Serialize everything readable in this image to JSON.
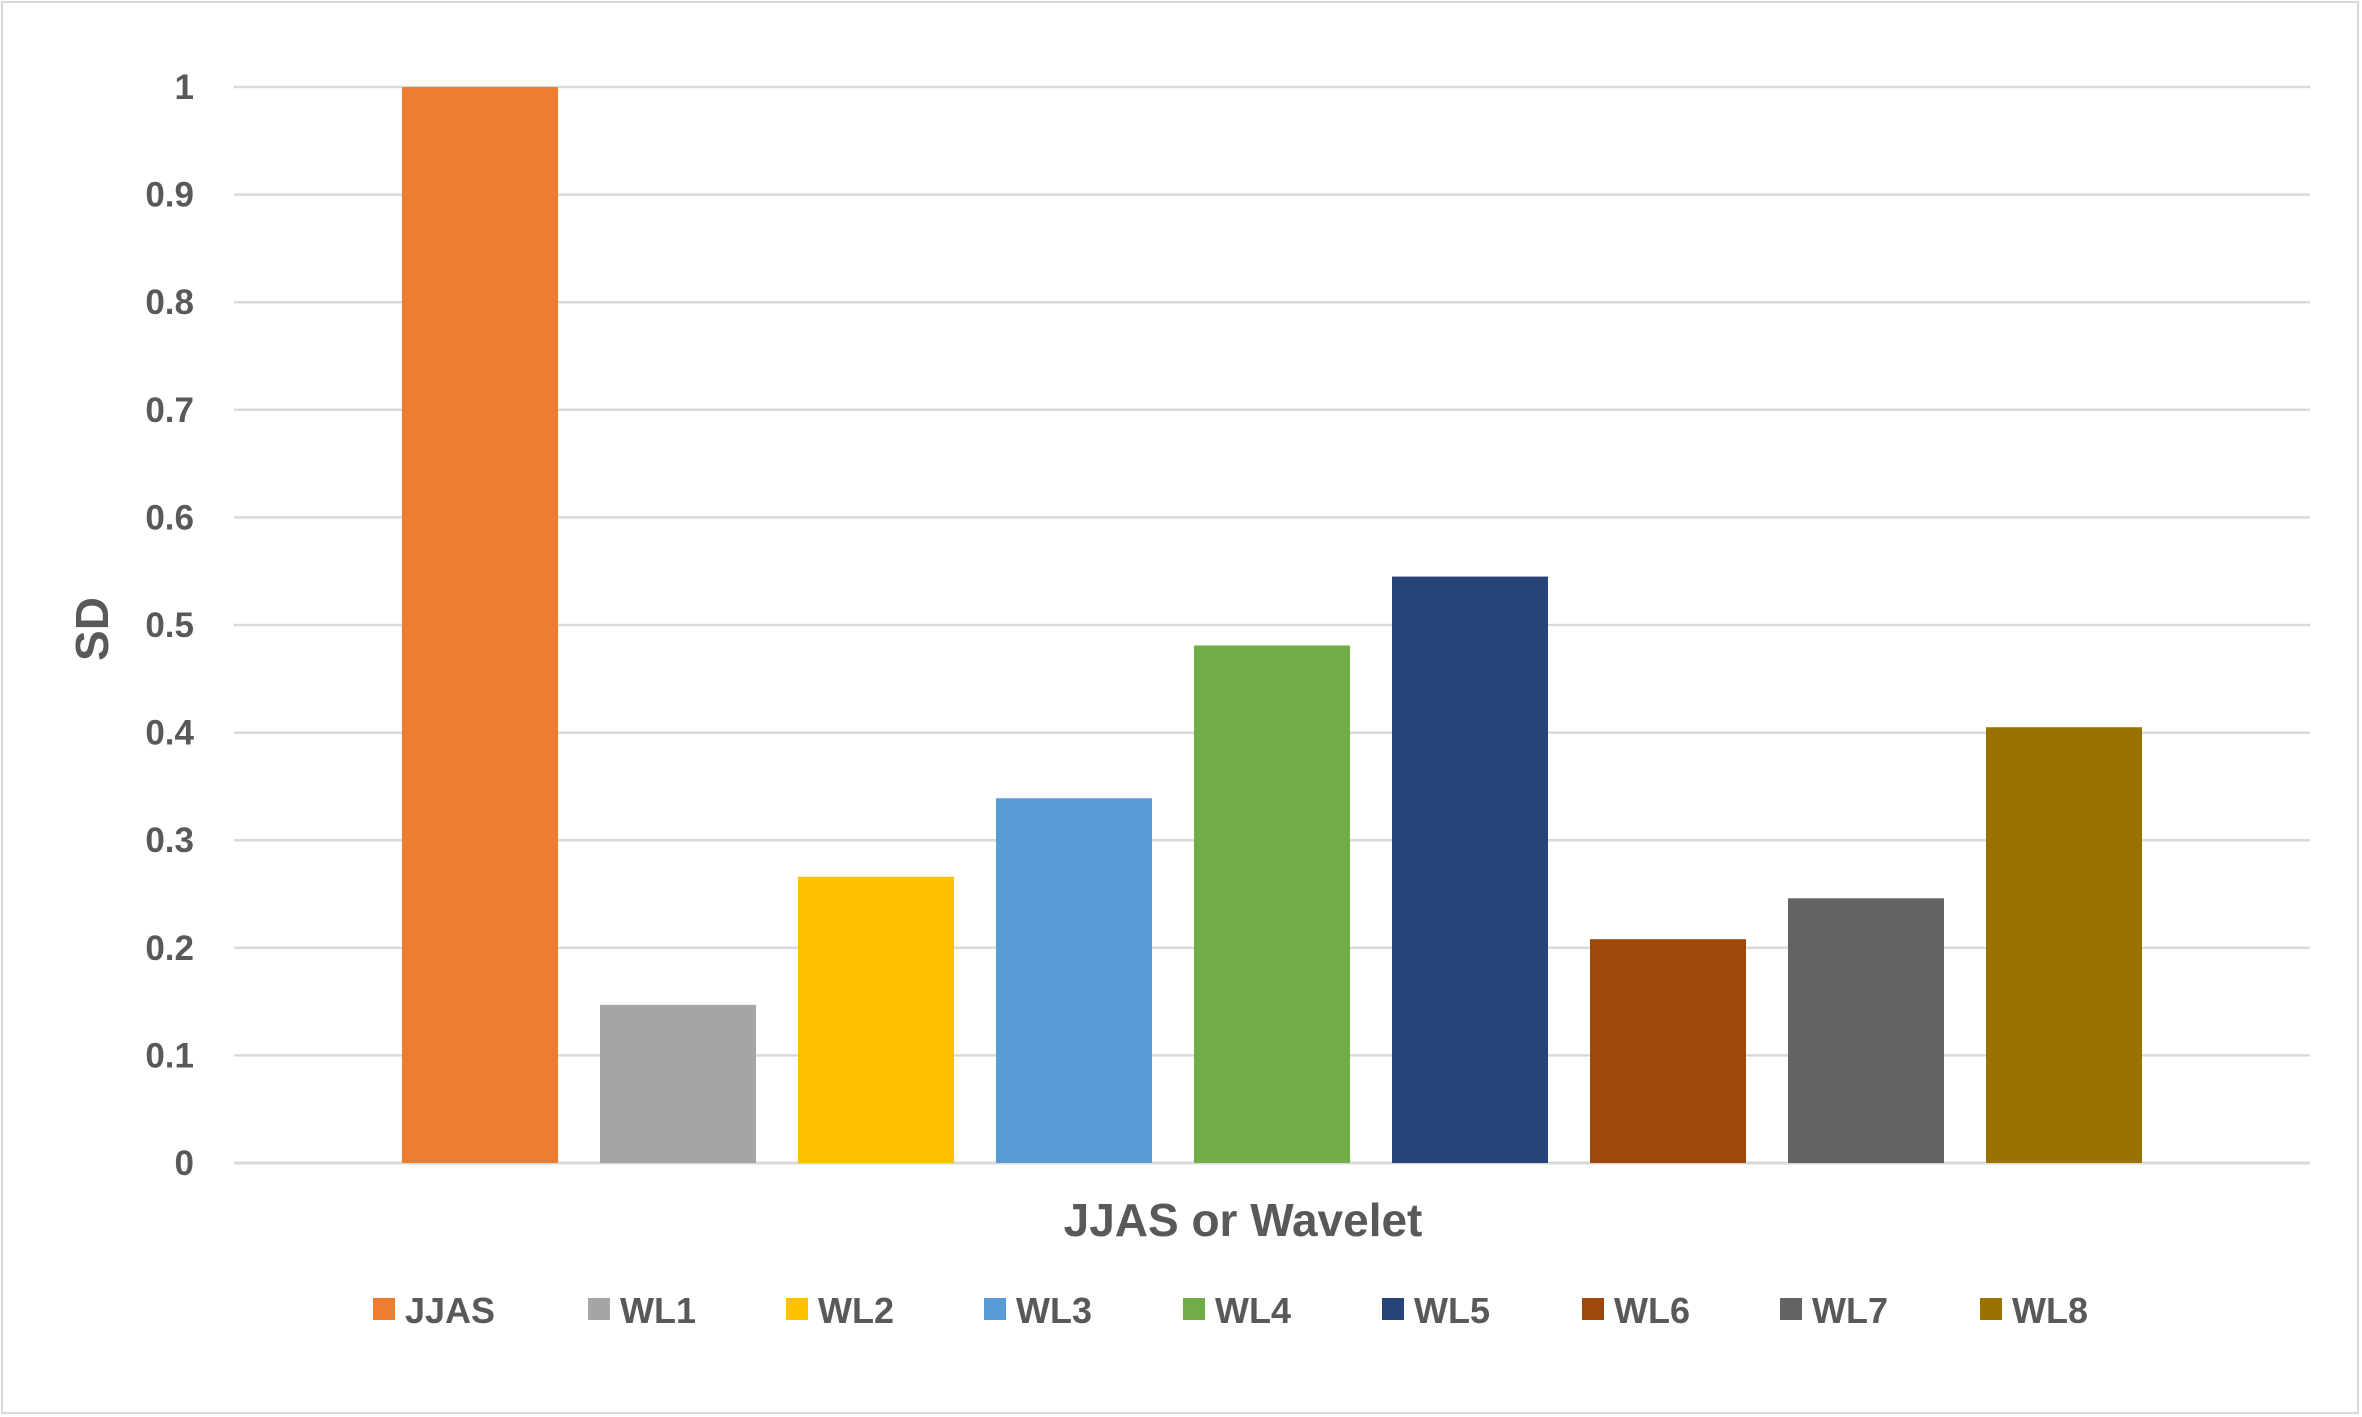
{
  "chart_data": {
    "type": "bar",
    "title": "",
    "xlabel": "JJAS or Wavelet",
    "ylabel": "SD",
    "ylim": [
      0,
      1
    ],
    "yticks": [
      "0",
      "0.1",
      "0.2",
      "0.3",
      "0.4",
      "0.5",
      "0.6",
      "0.7",
      "0.8",
      "0.9",
      "1"
    ],
    "grid": true,
    "legend_position": "bottom",
    "series": [
      {
        "name": "JJAS",
        "value": 1.0,
        "color": "#ED7D31"
      },
      {
        "name": "WL1",
        "value": 0.147,
        "color": "#A5A5A5"
      },
      {
        "name": "WL2",
        "value": 0.266,
        "color": "#FFC000"
      },
      {
        "name": "WL3",
        "value": 0.339,
        "color": "#5B9BD5"
      },
      {
        "name": "WL4",
        "value": 0.481,
        "color": "#70AD47"
      },
      {
        "name": "WL5",
        "value": 0.545,
        "color": "#264478"
      },
      {
        "name": "WL6",
        "value": 0.208,
        "color": "#9E480E"
      },
      {
        "name": "WL7",
        "value": 0.246,
        "color": "#636363"
      },
      {
        "name": "WL8",
        "value": 0.405,
        "color": "#997300"
      }
    ]
  }
}
